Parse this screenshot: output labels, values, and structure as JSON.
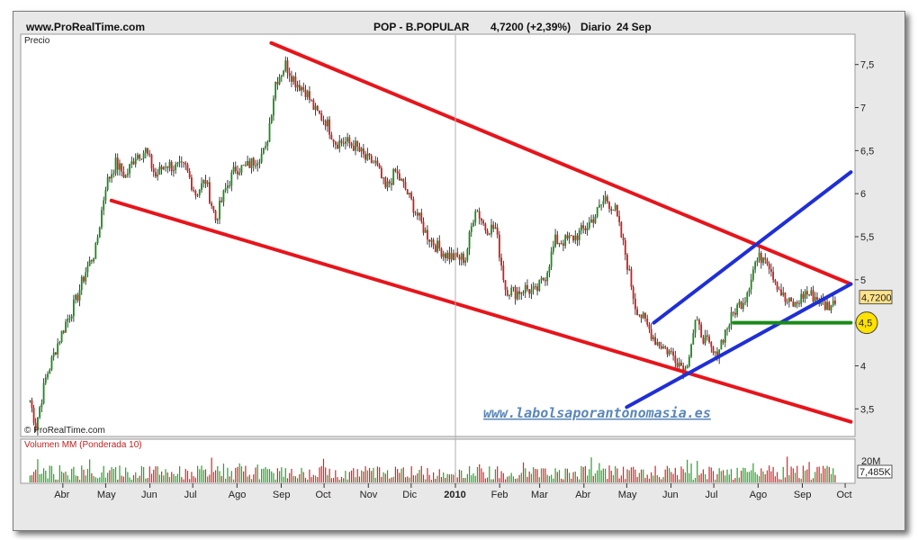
{
  "header": {
    "site": "www.ProRealTime.com",
    "ticker": "POP - B.POPULAR",
    "price_change": "4,7200 (+2,39%)",
    "period": "Diario",
    "date": "24 Sep"
  },
  "panels": {
    "price_label": "Precio",
    "copyright": "© ProRealTime.com",
    "volume_label": "Volumen MM (Ponderada 10)",
    "watermark": "www.labolsaporantonomasia.es"
  },
  "badges": {
    "last_price": "4,7200",
    "support_level": "4,5",
    "volume_top": "20M",
    "volume_last": "7,485K"
  },
  "colors": {
    "bearish_channel": "#e8141b",
    "bullish_channel": "#1f2fd6",
    "support_line": "#1a8a1a",
    "candle_up": "#1a8a1a",
    "candle_down": "#d01c1c",
    "volume_up": "#2aa02a",
    "volume_down": "#d02a2a",
    "price_badge": "#ffe38a",
    "support_badge": "#ffe200"
  },
  "chart_data": {
    "type": "candlestick",
    "title": "POP - B.POPULAR 4,7200 (+2,39%) Diario 24 Sep",
    "ylabel": "Precio",
    "ylim": [
      3.2,
      7.8
    ],
    "y_ticks": [
      "3,5",
      "4",
      "4,5",
      "5",
      "5,5",
      "6",
      "6,5",
      "7",
      "7,5"
    ],
    "y_tick_values": [
      3.5,
      4,
      4.5,
      5,
      5.5,
      6,
      6.5,
      7,
      7.5
    ],
    "x_ticks": [
      "Abr",
      "May",
      "Jun",
      "Jul",
      "Ago",
      "Sep",
      "Oct",
      "Nov",
      "Dic",
      "2010",
      "Feb",
      "Mar",
      "Abr",
      "May",
      "Jun",
      "Jul",
      "Ago",
      "Sep",
      "Oct"
    ],
    "x_tick_dates": [
      "2009-04",
      "2009-05",
      "2009-06",
      "2009-07",
      "2009-08",
      "2009-09",
      "2009-10",
      "2009-11",
      "2009-12",
      "2010-01",
      "2010-02",
      "2010-03",
      "2010-04",
      "2010-05",
      "2010-06",
      "2010-07",
      "2010-08",
      "2010-09",
      "2010-10"
    ],
    "close_series": {
      "name": "Precio",
      "points": [
        [
          "2009-03-09",
          3.6
        ],
        [
          "2009-03-13",
          3.3
        ],
        [
          "2009-03-20",
          3.85
        ],
        [
          "2009-03-27",
          4.2
        ],
        [
          "2009-04-03",
          4.5
        ],
        [
          "2009-04-10",
          4.75
        ],
        [
          "2009-04-17",
          5.1
        ],
        [
          "2009-04-24",
          5.35
        ],
        [
          "2009-05-01",
          6.1
        ],
        [
          "2009-05-08",
          6.35
        ],
        [
          "2009-05-15",
          6.2
        ],
        [
          "2009-05-22",
          6.45
        ],
        [
          "2009-05-29",
          6.5
        ],
        [
          "2009-06-05",
          6.2
        ],
        [
          "2009-06-12",
          6.35
        ],
        [
          "2009-06-19",
          6.3
        ],
        [
          "2009-06-26",
          6.3
        ],
        [
          "2009-07-03",
          6.0
        ],
        [
          "2009-07-10",
          6.15
        ],
        [
          "2009-07-17",
          5.7
        ],
        [
          "2009-07-24",
          6.05
        ],
        [
          "2009-07-31",
          6.3
        ],
        [
          "2009-08-07",
          6.3
        ],
        [
          "2009-08-14",
          6.4
        ],
        [
          "2009-08-21",
          6.5
        ],
        [
          "2009-08-28",
          7.3
        ],
        [
          "2009-09-04",
          7.5
        ],
        [
          "2009-09-11",
          7.3
        ],
        [
          "2009-09-18",
          7.2
        ],
        [
          "2009-09-25",
          6.95
        ],
        [
          "2009-10-02",
          6.85
        ],
        [
          "2009-10-09",
          6.6
        ],
        [
          "2009-10-16",
          6.6
        ],
        [
          "2009-10-23",
          6.55
        ],
        [
          "2009-10-30",
          6.4
        ],
        [
          "2009-11-06",
          6.35
        ],
        [
          "2009-11-13",
          6.05
        ],
        [
          "2009-11-20",
          6.25
        ],
        [
          "2009-11-27",
          6.05
        ],
        [
          "2009-12-04",
          5.8
        ],
        [
          "2009-12-11",
          5.55
        ],
        [
          "2009-12-18",
          5.4
        ],
        [
          "2009-12-25",
          5.3
        ],
        [
          "2010-01-01",
          5.25
        ],
        [
          "2010-01-08",
          5.25
        ],
        [
          "2010-01-15",
          5.85
        ],
        [
          "2010-01-22",
          5.6
        ],
        [
          "2010-01-29",
          5.6
        ],
        [
          "2010-02-05",
          4.9
        ],
        [
          "2010-02-12",
          4.85
        ],
        [
          "2010-02-19",
          4.9
        ],
        [
          "2010-02-26",
          4.85
        ],
        [
          "2010-03-05",
          5.05
        ],
        [
          "2010-03-12",
          5.45
        ],
        [
          "2010-03-19",
          5.45
        ],
        [
          "2010-03-26",
          5.5
        ],
        [
          "2010-04-02",
          5.6
        ],
        [
          "2010-04-09",
          5.75
        ],
        [
          "2010-04-16",
          5.95
        ],
        [
          "2010-04-23",
          5.8
        ],
        [
          "2010-04-30",
          5.3
        ],
        [
          "2010-05-07",
          4.7
        ],
        [
          "2010-05-14",
          4.5
        ],
        [
          "2010-05-21",
          4.3
        ],
        [
          "2010-05-28",
          4.2
        ],
        [
          "2010-06-04",
          4.1
        ],
        [
          "2010-06-11",
          3.95
        ],
        [
          "2010-06-18",
          4.5
        ],
        [
          "2010-06-25",
          4.3
        ],
        [
          "2010-07-02",
          4.1
        ],
        [
          "2010-07-09",
          4.4
        ],
        [
          "2010-07-16",
          4.65
        ],
        [
          "2010-07-23",
          4.8
        ],
        [
          "2010-07-30",
          5.2
        ],
        [
          "2010-08-06",
          5.3
        ],
        [
          "2010-08-13",
          5.0
        ],
        [
          "2010-08-20",
          4.75
        ],
        [
          "2010-08-27",
          4.7
        ],
        [
          "2010-09-03",
          4.85
        ],
        [
          "2010-09-10",
          4.8
        ],
        [
          "2010-09-17",
          4.7
        ],
        [
          "2010-09-24",
          4.72
        ]
      ]
    },
    "trendlines": [
      {
        "name": "canal bajista superior",
        "color": "bearish_channel",
        "from": [
          "2009-08-25",
          7.75
        ],
        "to": [
          "2010-10-05",
          4.95
        ]
      },
      {
        "name": "canal bajista inferior",
        "color": "bearish_channel",
        "from": [
          "2009-05-05",
          5.92
        ],
        "to": [
          "2010-10-05",
          3.35
        ]
      },
      {
        "name": "canal alcista superior",
        "color": "bullish_channel",
        "from": [
          "2010-05-20",
          4.5
        ],
        "to": [
          "2010-10-05",
          6.25
        ]
      },
      {
        "name": "canal alcista inferior",
        "color": "bullish_channel",
        "from": [
          "2010-05-01",
          3.52
        ],
        "to": [
          "2010-10-05",
          4.95
        ]
      },
      {
        "name": "soporte",
        "color": "support_line",
        "from": [
          "2010-07-15",
          4.5
        ],
        "to": [
          "2010-10-05",
          4.5
        ]
      }
    ],
    "volume_indicator": "Volumen MM (Ponderada 10)",
    "volume_last": "7,485K",
    "grid": false,
    "legend": "none"
  }
}
